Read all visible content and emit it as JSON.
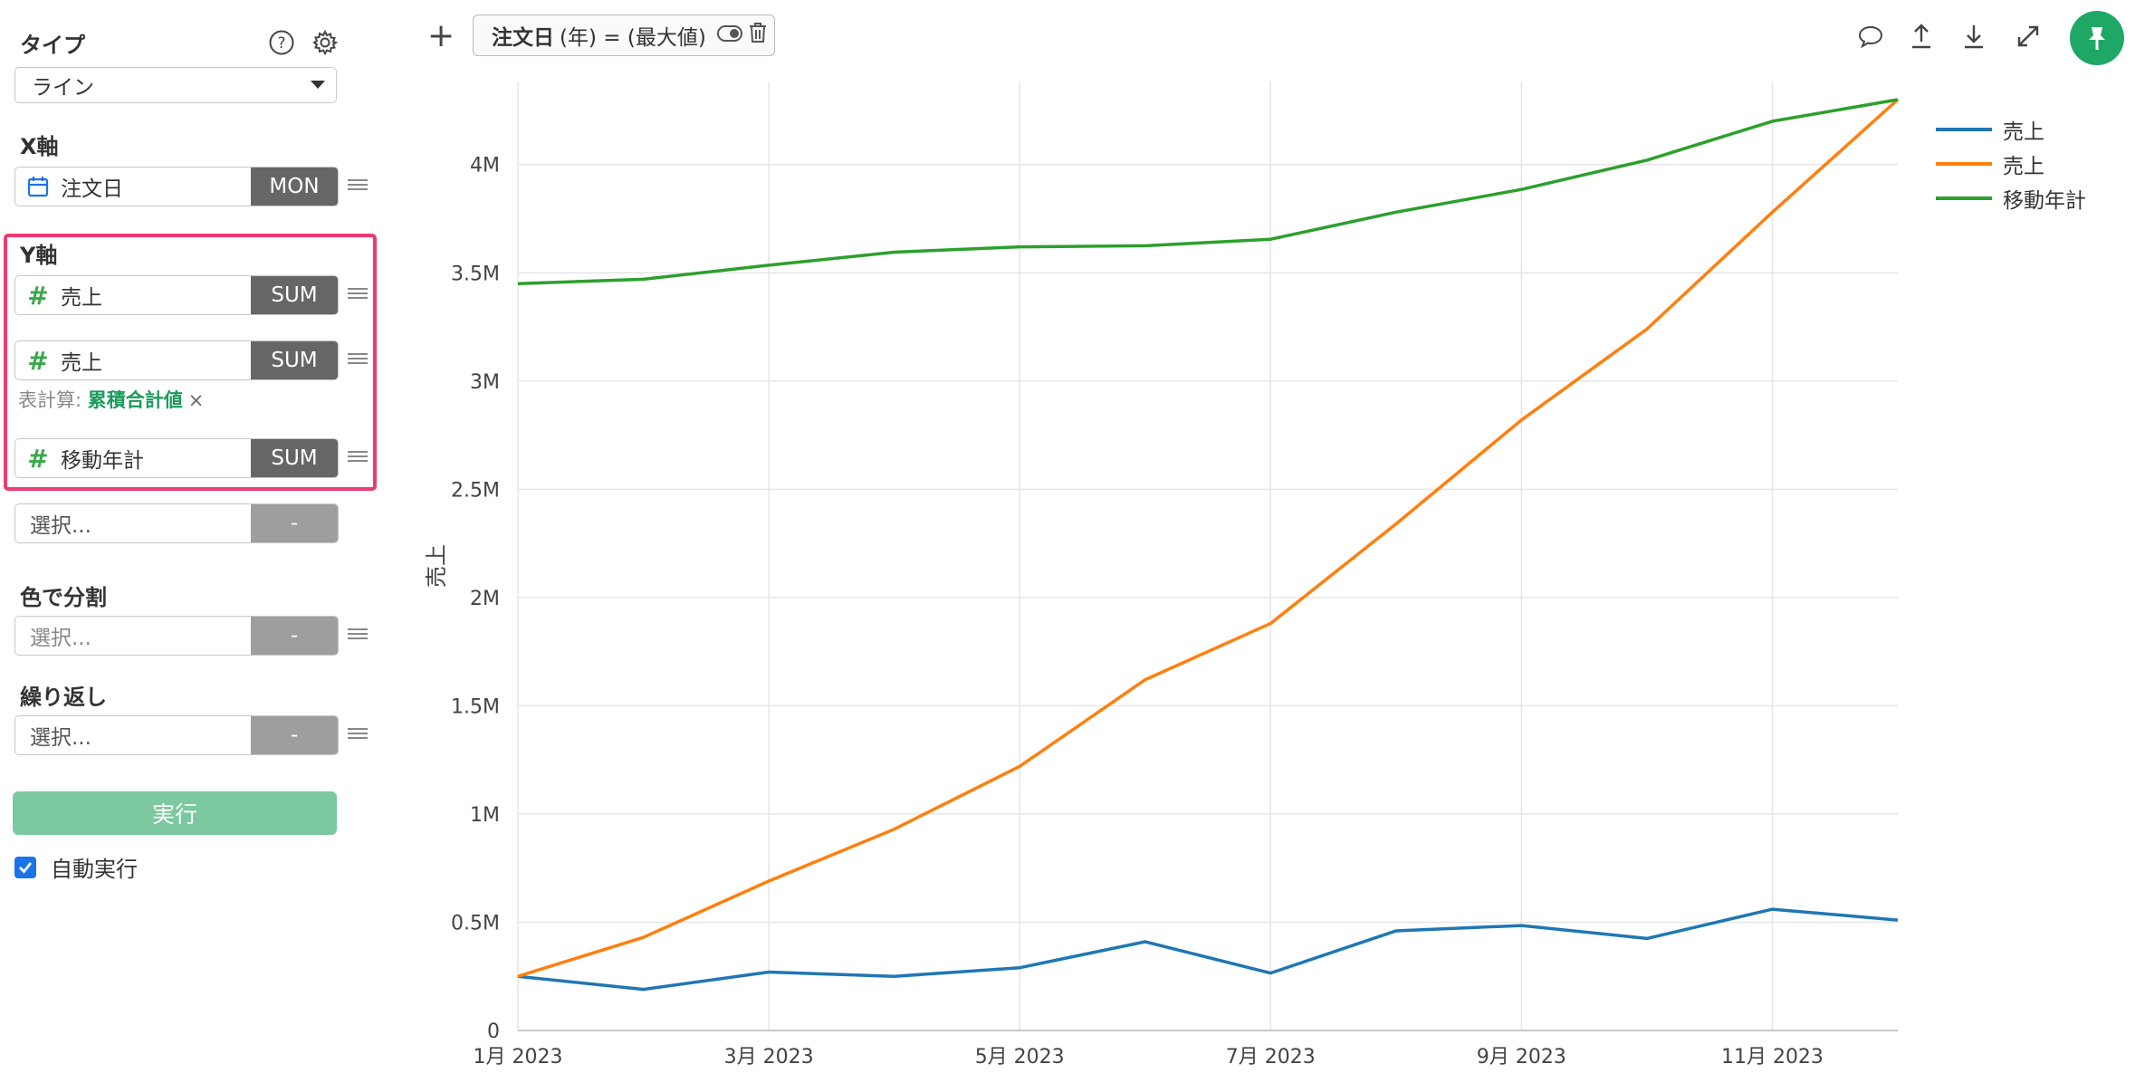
{
  "sidebar": {
    "type_label": "タイプ",
    "type_value": "ライン",
    "x_label": "X軸",
    "x_field": {
      "name": "注文日",
      "agg": "MON"
    },
    "y_label": "Y軸",
    "y_fields": [
      {
        "name": "売上",
        "agg": "SUM"
      },
      {
        "name": "売上",
        "agg": "SUM"
      },
      {
        "name": "移動年計",
        "agg": "SUM"
      }
    ],
    "calc_prefix": "表計算:",
    "calc_value": "累積合計値",
    "calc_clear": "×",
    "extra_placeholder": "選択...",
    "extra_agg": "-",
    "color_label": "色で分割",
    "color_placeholder": "選択...",
    "color_agg": "-",
    "repeat_label": "繰り返し",
    "repeat_placeholder": "選択...",
    "repeat_agg": "-",
    "run_label": "実行",
    "auto_label": "自動実行",
    "auto_checked": true,
    "hash_icon": "#"
  },
  "toolbar": {
    "add_icon": "+",
    "filter_chip_bold": "注文日",
    "filter_chip_rest": "(年) = (最大値)"
  },
  "chart_data": {
    "type": "line",
    "x": [
      "2023-01",
      "2023-02",
      "2023-03",
      "2023-04",
      "2023-05",
      "2023-06",
      "2023-07",
      "2023-08",
      "2023-09",
      "2023-10",
      "2023-11",
      "2023-12"
    ],
    "xticks": [
      "1月 2023",
      "3月 2023",
      "5月 2023",
      "7月 2023",
      "9月 2023",
      "11月 2023"
    ],
    "yticks": [
      "0",
      "0.5M",
      "1M",
      "1.5M",
      "2M",
      "2.5M",
      "3M",
      "3.5M",
      "4M"
    ],
    "ylabel": "売上",
    "ylim": [
      0,
      4300000
    ],
    "grid": true,
    "legend_position": "top-right",
    "series": [
      {
        "name": "売上",
        "color": "#1f77b4",
        "values": [
          250000,
          190000,
          270000,
          250000,
          290000,
          410000,
          265000,
          460000,
          485000,
          425000,
          560000,
          510000
        ]
      },
      {
        "name": "売上",
        "color": "#ff7f0e",
        "values": [
          250000,
          430000,
          690000,
          930000,
          1220000,
          1620000,
          1880000,
          2340000,
          2820000,
          3240000,
          3780000,
          4300000
        ]
      },
      {
        "name": "移動年計",
        "color": "#2ca02c",
        "values": [
          3450000,
          3470000,
          3535000,
          3595000,
          3620000,
          3625000,
          3655000,
          3780000,
          3885000,
          4020000,
          4200000,
          4300000
        ]
      }
    ]
  }
}
